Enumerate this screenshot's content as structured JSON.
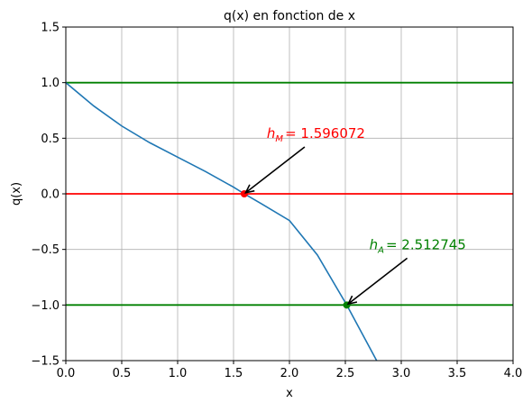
{
  "chart_data": {
    "type": "line",
    "title": "q(x) en fonction de x",
    "x_label": "x",
    "y_label": "q(x)",
    "xlim": [
      0,
      4
    ],
    "ylim": [
      -1.5,
      1.5
    ],
    "grid": true,
    "xticks": [
      {
        "value": 0,
        "label": "0.0"
      },
      {
        "value": 0.5,
        "label": "0.5"
      },
      {
        "value": 1,
        "label": "1.0"
      },
      {
        "value": 1.5,
        "label": "1.5"
      },
      {
        "value": 2,
        "label": "2.0"
      },
      {
        "value": 2.5,
        "label": "2.5"
      },
      {
        "value": 3,
        "label": "3.0"
      },
      {
        "value": 3.5,
        "label": "3.5"
      },
      {
        "value": 4,
        "label": "4.0"
      }
    ],
    "yticks": [
      {
        "value": -1.5,
        "label": "−1.5"
      },
      {
        "value": -1,
        "label": "−1.0"
      },
      {
        "value": -0.5,
        "label": "−0.5"
      },
      {
        "value": 0,
        "label": "0.0"
      },
      {
        "value": 0.5,
        "label": "0.5"
      },
      {
        "value": 1,
        "label": "1.0"
      },
      {
        "value": 1.5,
        "label": "1.5"
      }
    ],
    "x": [
      0,
      0.25,
      0.5,
      0.75,
      1,
      1.25,
      1.5,
      1.596072,
      1.75,
      2,
      2.25,
      2.512745,
      2.78
    ],
    "values": [
      1,
      0.79,
      0.61,
      0.46,
      0.33,
      0.2,
      0.06,
      0,
      -0.09,
      -0.24,
      -0.55,
      -1,
      -1.5
    ],
    "color": "#1f77b4",
    "hlines": [
      {
        "value": 1,
        "color": "#008000"
      },
      {
        "value": 0,
        "color": "#ff0000"
      },
      {
        "value": -1,
        "color": "#008000"
      }
    ],
    "points": [
      {
        "x": 1.596072,
        "y": 0,
        "color": "#ff0000",
        "symbol": "h",
        "subscript": "M",
        "text": "= 1.596072"
      },
      {
        "x": 2.512745,
        "y": -1,
        "color": "#008000",
        "symbol": "h",
        "subscript": "A",
        "text": "= 2.512745"
      }
    ]
  }
}
